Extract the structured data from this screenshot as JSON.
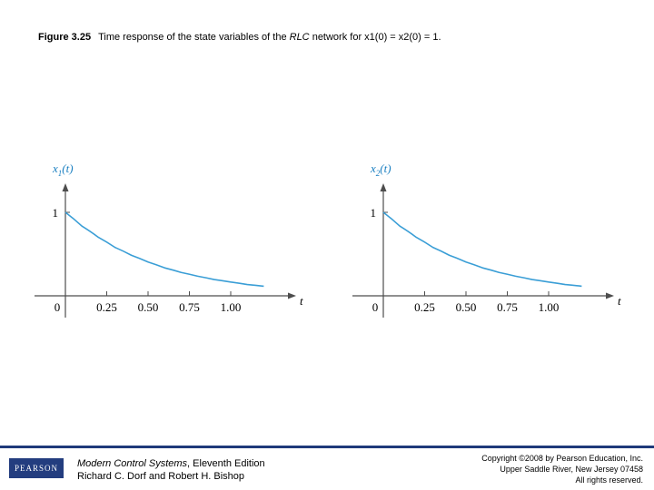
{
  "caption": {
    "figure_number": "Figure 3.25",
    "text_prefix": "Time response of the state variables of the ",
    "text_italic": "RLC",
    "text_mid": " network for ",
    "condition": "x1(0) = x2(0) = 1."
  },
  "chart_data": [
    {
      "type": "line",
      "ylabel": "x1(t)",
      "xlabel": "t",
      "x_ticks": [
        "0",
        "0.25",
        "0.50",
        "0.75",
        "1.00"
      ],
      "y_ticks": [
        "1"
      ],
      "xlim": [
        0,
        1.25
      ],
      "ylim": [
        0,
        1.0
      ],
      "series": [
        {
          "x": [
            0,
            0.1,
            0.2,
            0.3,
            0.4,
            0.5,
            0.6,
            0.7,
            0.8,
            0.9,
            1.0,
            1.1,
            1.2
          ],
          "y": [
            1.0,
            0.835,
            0.7,
            0.58,
            0.485,
            0.405,
            0.335,
            0.28,
            0.235,
            0.195,
            0.165,
            0.135,
            0.115
          ]
        }
      ],
      "colors": {
        "curve": "#3a9ed6",
        "axes": "#4d4d4d",
        "ylabel": "#1a7fc1"
      }
    },
    {
      "type": "line",
      "ylabel": "x2(t)",
      "xlabel": "t",
      "x_ticks": [
        "0",
        "0.25",
        "0.50",
        "0.75",
        "1.00"
      ],
      "y_ticks": [
        "1"
      ],
      "xlim": [
        0,
        1.25
      ],
      "ylim": [
        0,
        1.0
      ],
      "series": [
        {
          "x": [
            0,
            0.1,
            0.2,
            0.3,
            0.4,
            0.5,
            0.6,
            0.7,
            0.8,
            0.9,
            1.0,
            1.1,
            1.2
          ],
          "y": [
            1.0,
            0.835,
            0.7,
            0.58,
            0.485,
            0.405,
            0.335,
            0.28,
            0.235,
            0.195,
            0.165,
            0.135,
            0.115
          ]
        }
      ],
      "colors": {
        "curve": "#3a9ed6",
        "axes": "#4d4d4d",
        "ylabel": "#1a7fc1"
      }
    }
  ],
  "footer": {
    "logo_text": "PEARSON",
    "book_title": "Modern Control Systems",
    "book_edition": ", Eleventh Edition",
    "authors": "Richard C. Dorf and Robert H. Bishop",
    "copyright_lines": [
      "Copyright ©2008 by Pearson Education, Inc.",
      "Upper Saddle River, New Jersey 07458",
      "All rights reserved."
    ],
    "rule_color": "#1f3a7a"
  }
}
